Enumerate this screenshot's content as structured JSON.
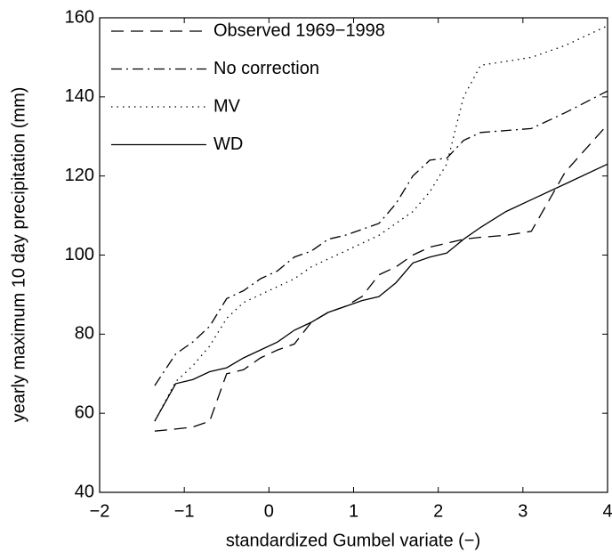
{
  "chart_data": {
    "type": "line",
    "xlabel": "standardized Gumbel variate (−)",
    "ylabel": "yearly maximum 10 day precipitation (mm)",
    "x": [
      -1.35,
      -1.1,
      -0.9,
      -0.7,
      -0.5,
      -0.3,
      -0.1,
      0.1,
      0.3,
      0.5,
      0.7,
      0.9,
      1.1,
      1.3,
      1.5,
      1.7,
      1.9,
      2.1,
      2.3,
      2.5,
      2.8,
      3.1,
      3.5,
      4.0
    ],
    "series": [
      {
        "name": "Observed 1969−1998",
        "color": "#000000",
        "dash": "dashed",
        "values": [
          55.5,
          56,
          56.5,
          58,
          70,
          71,
          74,
          76,
          77.5,
          83,
          85.5,
          87,
          89.5,
          95,
          97,
          100,
          102,
          103,
          104,
          104.5,
          105,
          106,
          121,
          133
        ]
      },
      {
        "name": "No correction",
        "color": "#000000",
        "dash": "dashdot",
        "values": [
          67,
          75,
          78,
          82,
          89,
          91,
          94,
          96,
          99.5,
          101,
          104,
          105,
          106.5,
          108,
          113,
          120,
          124,
          124.5,
          129,
          131,
          131.5,
          132,
          136,
          141.5
        ]
      },
      {
        "name": "MV",
        "color": "#000000",
        "dash": "dotted",
        "values": [
          58,
          68,
          72,
          77,
          84,
          88,
          90,
          92,
          94,
          97,
          99,
          101,
          103,
          105,
          108,
          111,
          116,
          123,
          140,
          148,
          149,
          150,
          153,
          158
        ]
      },
      {
        "name": "WD",
        "color": "#000000",
        "dash": "solid",
        "values": [
          58,
          67.5,
          68.5,
          70.5,
          71.5,
          74,
          76,
          78,
          81,
          83,
          85.5,
          87,
          88.5,
          89.5,
          93,
          98,
          99.5,
          100.5,
          104,
          107,
          111,
          114,
          118,
          123
        ]
      }
    ],
    "xlim": [
      -2,
      4
    ],
    "ylim": [
      40,
      160
    ],
    "xticks": [
      {
        "value": -2,
        "label": "−2"
      },
      {
        "value": -1,
        "label": "−1"
      },
      0,
      1,
      2,
      3,
      4
    ],
    "yticks": [
      40,
      60,
      80,
      100,
      120,
      140,
      160
    ],
    "legend": "upper-left"
  }
}
